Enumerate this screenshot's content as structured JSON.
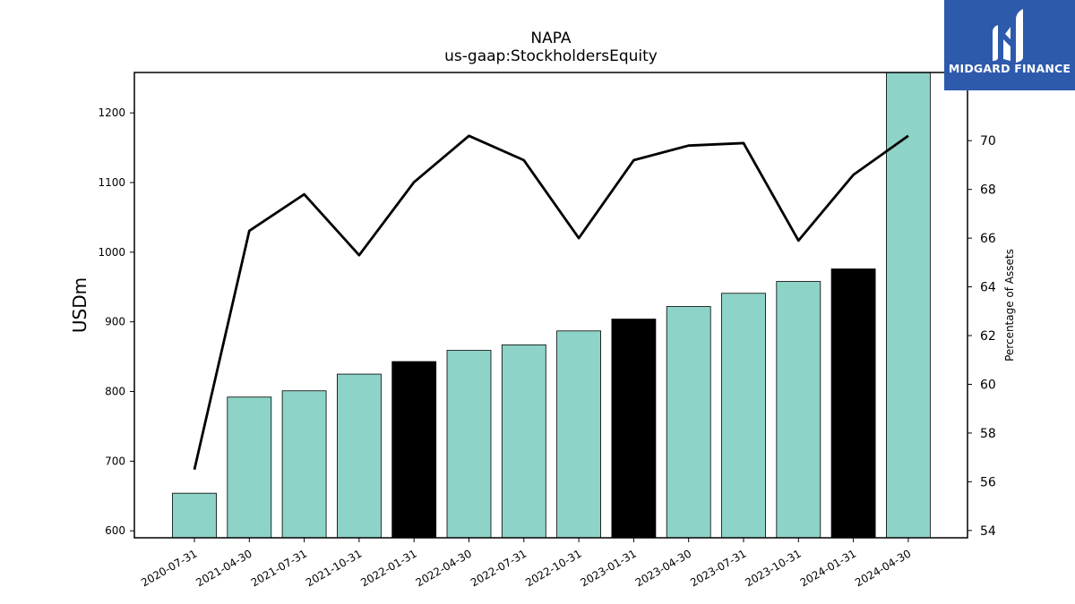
{
  "chart_data": {
    "type": "bar",
    "title": "NAPA",
    "subtitle": "us-gaap:StockholdersEquity",
    "ylabel": "USDm",
    "y2label": "Percentage of Assets",
    "ylim": [
      590,
      1258
    ],
    "y2lim": [
      53.7,
      72.8
    ],
    "yticks": [
      600,
      700,
      800,
      900,
      1000,
      1100,
      1200
    ],
    "y2ticks": [
      54,
      56,
      58,
      60,
      62,
      64,
      66,
      68,
      70
    ],
    "grid": false,
    "categories": [
      "2020-07-31",
      "2021-04-30",
      "2021-07-31",
      "2021-10-31",
      "2022-01-31",
      "2022-04-30",
      "2022-07-31",
      "2022-10-31",
      "2023-01-31",
      "2023-04-30",
      "2023-07-31",
      "2023-10-31",
      "2024-01-31",
      "2024-04-30"
    ],
    "series": [
      {
        "kind": "bar",
        "axis": "left",
        "values": [
          654,
          792,
          801,
          825,
          843,
          859,
          867,
          887,
          904,
          922,
          941,
          958,
          976,
          1258
        ],
        "colors": [
          "#8dd3c7",
          "#8dd3c7",
          "#8dd3c7",
          "#8dd3c7",
          "#000000",
          "#8dd3c7",
          "#8dd3c7",
          "#8dd3c7",
          "#000000",
          "#8dd3c7",
          "#8dd3c7",
          "#8dd3c7",
          "#000000",
          "#8dd3c7"
        ]
      },
      {
        "kind": "line",
        "axis": "right",
        "color": "#000000",
        "values": [
          56.5,
          66.3,
          67.8,
          65.3,
          68.3,
          70.2,
          69.2,
          66.0,
          69.2,
          69.8,
          69.9,
          65.9,
          68.6,
          70.2
        ]
      }
    ]
  },
  "logo": {
    "text": "MIDGARD FINANCE",
    "background": "#2e5aac"
  }
}
